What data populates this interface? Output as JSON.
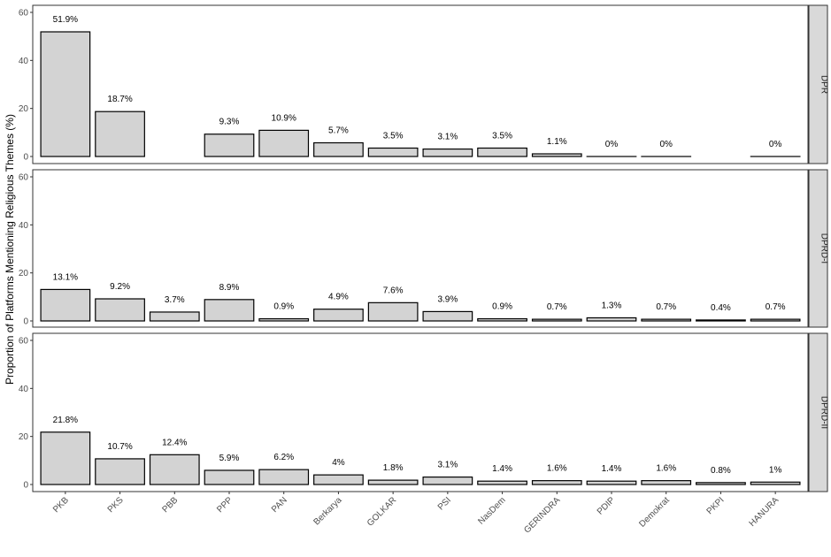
{
  "chart_data": {
    "type": "bar",
    "ylabel": "Proportion of Platforms Mentioning Religious Themes (%)",
    "xlabel": "",
    "ylim": [
      0,
      62
    ],
    "yticks": [
      0,
      20,
      40,
      60
    ],
    "categories": [
      "PKB",
      "PKS",
      "PBB",
      "PPP",
      "PAN",
      "Berkarya",
      "GOLKAR",
      "PSI",
      "NasDem",
      "GERINDRA",
      "PDIP",
      "Demokrat",
      "PKPI",
      "HANURA"
    ],
    "grid": false,
    "colors": {
      "bar_fill": "#d3d3d3",
      "bar_stroke": "#000000",
      "strip_fill": "#d9d9d9",
      "panel_border": "#333333"
    },
    "panels": [
      {
        "name": "DPR",
        "values": [
          51.9,
          18.7,
          null,
          9.3,
          10.9,
          5.7,
          3.5,
          3.1,
          3.5,
          1.1,
          0,
          0,
          null,
          0
        ],
        "labels": [
          "51.9%",
          "18.7%",
          "",
          "9.3%",
          "10.9%",
          "5.7%",
          "3.5%",
          "3.1%",
          "3.5%",
          "1.1%",
          "0%",
          "0%",
          "",
          "0%"
        ]
      },
      {
        "name": "DPRD-I",
        "values": [
          13.1,
          9.2,
          3.7,
          8.9,
          0.9,
          4.9,
          7.6,
          3.9,
          0.9,
          0.7,
          1.3,
          0.7,
          0.4,
          0.7
        ],
        "labels": [
          "13.1%",
          "9.2%",
          "3.7%",
          "8.9%",
          "0.9%",
          "4.9%",
          "7.6%",
          "3.9%",
          "0.9%",
          "0.7%",
          "1.3%",
          "0.7%",
          "0.4%",
          "0.7%"
        ]
      },
      {
        "name": "DPRD-II",
        "values": [
          21.8,
          10.7,
          12.4,
          5.9,
          6.2,
          4,
          1.8,
          3.1,
          1.4,
          1.6,
          1.4,
          1.6,
          0.8,
          1
        ],
        "labels": [
          "21.8%",
          "10.7%",
          "12.4%",
          "5.9%",
          "6.2%",
          "4%",
          "1.8%",
          "3.1%",
          "1.4%",
          "1.6%",
          "1.4%",
          "1.6%",
          "0.8%",
          "1%"
        ]
      }
    ]
  }
}
